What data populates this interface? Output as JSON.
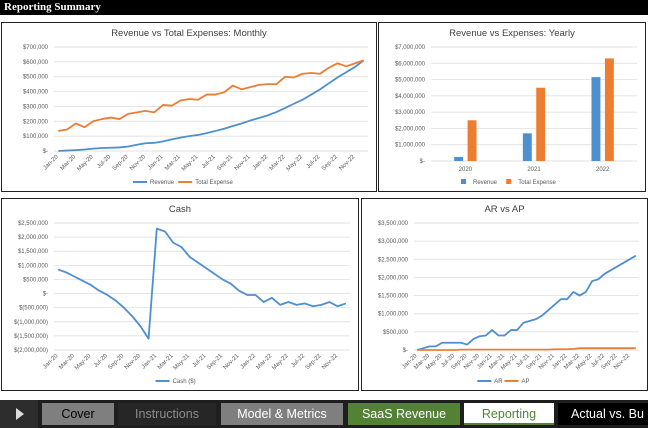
{
  "header": {
    "title": "Reporting Summary"
  },
  "chart_data": [
    {
      "type": "line",
      "title": "Revenue vs Total Expenses: Monthly",
      "categories": [
        "Jan-20",
        null,
        "Mar-20",
        null,
        "May-20",
        null,
        "Jul-20",
        null,
        "Sep-20",
        null,
        "Nov-20",
        null,
        "Jan-21",
        null,
        "Mar-21",
        null,
        "May-21",
        null,
        "Jul-21",
        null,
        "Sep-21",
        null,
        "Nov-21",
        null,
        "Jan-22",
        null,
        "Mar-22",
        null,
        "May-22",
        null,
        "Jul-22",
        null,
        "Sep-22",
        null,
        "Nov-22",
        null
      ],
      "series": [
        {
          "name": "Revenue",
          "color": "#4e8fcf",
          "values": [
            0,
            3000,
            6000,
            10000,
            16000,
            20000,
            22000,
            24000,
            30000,
            42000,
            52000,
            55000,
            65000,
            78000,
            90000,
            100000,
            108000,
            120000,
            135000,
            150000,
            168000,
            185000,
            205000,
            222000,
            240000,
            262000,
            290000,
            318000,
            345000,
            380000,
            415000,
            455000,
            495000,
            530000,
            565000,
            610000
          ]
        },
        {
          "name": "Total Expense",
          "color": "#ed7d31",
          "values": [
            135000,
            145000,
            185000,
            160000,
            200000,
            215000,
            225000,
            215000,
            250000,
            260000,
            270000,
            260000,
            310000,
            305000,
            340000,
            350000,
            345000,
            380000,
            380000,
            395000,
            440000,
            415000,
            430000,
            445000,
            450000,
            450000,
            500000,
            495000,
            520000,
            525000,
            520000,
            560000,
            590000,
            570000,
            590000,
            610000
          ]
        }
      ],
      "ylim": [
        0,
        700000
      ],
      "yticks": [
        {
          "value": 0,
          "label": "$-"
        },
        {
          "value": 100000,
          "label": "$100,000"
        },
        {
          "value": 200000,
          "label": "$200,000"
        },
        {
          "value": 300000,
          "label": "$300,000"
        },
        {
          "value": 400000,
          "label": "$400,000"
        },
        {
          "value": 500000,
          "label": "$500,000"
        },
        {
          "value": 600000,
          "label": "$600,000"
        },
        {
          "value": 700000,
          "label": "$700,000"
        }
      ],
      "grid": true,
      "legend": "bottom"
    },
    {
      "type": "bar",
      "title": "Revenue vs Expenses: Yearly",
      "categories": [
        "2020",
        "2021",
        "2022"
      ],
      "series": [
        {
          "name": "Revenue",
          "color": "#4e8fcf",
          "values": [
            250000,
            1700000,
            5150000
          ]
        },
        {
          "name": "Total Expense",
          "color": "#ed7d31",
          "values": [
            2500000,
            4500000,
            6300000
          ]
        }
      ],
      "ylim": [
        0,
        7000000
      ],
      "yticks": [
        {
          "value": 0,
          "label": "$-"
        },
        {
          "value": 1000000,
          "label": "$1,000,000"
        },
        {
          "value": 2000000,
          "label": "$2,000,000"
        },
        {
          "value": 3000000,
          "label": "$3,000,000"
        },
        {
          "value": 4000000,
          "label": "$4,000,000"
        },
        {
          "value": 5000000,
          "label": "$5,000,000"
        },
        {
          "value": 6000000,
          "label": "$6,000,000"
        },
        {
          "value": 7000000,
          "label": "$7,000,000"
        }
      ],
      "grid": true,
      "legend": "bottom"
    },
    {
      "type": "line",
      "title": "Cash",
      "categories": [
        "Jan-20",
        null,
        "Mar-20",
        null,
        "May-20",
        null,
        "Jul-20",
        null,
        "Sep-20",
        null,
        "Nov-20",
        null,
        "Jan-21",
        null,
        "Mar-21",
        null,
        "May-21",
        null,
        "Jul-21",
        null,
        "Sep-21",
        null,
        "Nov-21",
        null,
        "Jan-22",
        null,
        "Mar-22",
        null,
        "May-22",
        null,
        "Jul-22",
        null,
        "Sep-22",
        null,
        "Nov-22",
        null
      ],
      "series": [
        {
          "name": "Cash ($)",
          "color": "#4e8fcf",
          "values": [
            850000,
            750000,
            600000,
            450000,
            300000,
            100000,
            -50000,
            -250000,
            -500000,
            -800000,
            -1150000,
            -1600000,
            2300000,
            2200000,
            1800000,
            1650000,
            1300000,
            1100000,
            900000,
            700000,
            500000,
            350000,
            100000,
            -50000,
            -50000,
            -300000,
            -150000,
            -400000,
            -300000,
            -400000,
            -350000,
            -450000,
            -400000,
            -300000,
            -450000,
            -350000
          ]
        }
      ],
      "ylim": [
        -2000000,
        2500000
      ],
      "yticks": [
        {
          "value": -2000000,
          "label": "$(2,000,000)"
        },
        {
          "value": -1500000,
          "label": "$(1,500,000)"
        },
        {
          "value": -1000000,
          "label": "$(1,000,000)"
        },
        {
          "value": -500000,
          "label": "$(500,000)"
        },
        {
          "value": 0,
          "label": "$-"
        },
        {
          "value": 500000,
          "label": "$500,000"
        },
        {
          "value": 1000000,
          "label": "$1,000,000"
        },
        {
          "value": 1500000,
          "label": "$1,500,000"
        },
        {
          "value": 2000000,
          "label": "$2,000,000"
        },
        {
          "value": 2500000,
          "label": "$2,500,000"
        }
      ],
      "grid": true,
      "legend": "bottom"
    },
    {
      "type": "line",
      "title": "AR vs AP",
      "categories": [
        "Jan-20",
        null,
        "Mar-20",
        null,
        "May-20",
        null,
        "Jul-20",
        null,
        "Sep-20",
        null,
        "Nov-20",
        null,
        "Jan-21",
        null,
        "Mar-21",
        null,
        "May-21",
        null,
        "Jul-21",
        null,
        "Sep-21",
        null,
        "Nov-21",
        null,
        "Jan-22",
        null,
        "Mar-22",
        null,
        "May-22",
        null,
        "Jul-22",
        null,
        "Sep-22",
        null,
        "Nov-22",
        null
      ],
      "series": [
        {
          "name": "AR",
          "color": "#4e8fcf",
          "values": [
            0,
            50000,
            100000,
            100000,
            200000,
            200000,
            200000,
            200000,
            150000,
            300000,
            380000,
            400000,
            550000,
            400000,
            400000,
            550000,
            550000,
            750000,
            800000,
            850000,
            950000,
            1100000,
            1250000,
            1400000,
            1400000,
            1600000,
            1500000,
            1600000,
            1900000,
            1950000,
            2100000,
            2200000,
            2300000,
            2400000,
            2500000,
            2600000
          ]
        },
        {
          "name": "AP",
          "color": "#ed7d31",
          "values": [
            0,
            0,
            0,
            0,
            0,
            0,
            0,
            10000,
            10000,
            10000,
            10000,
            10000,
            10000,
            10000,
            10000,
            10000,
            10000,
            10000,
            10000,
            10000,
            10000,
            10000,
            20000,
            20000,
            20000,
            30000,
            50000,
            50000,
            50000,
            50000,
            50000,
            50000,
            50000,
            50000,
            50000,
            50000
          ]
        }
      ],
      "ylim": [
        0,
        3500000
      ],
      "yticks": [
        {
          "value": 0,
          "label": "$-"
        },
        {
          "value": 500000,
          "label": "$500,000"
        },
        {
          "value": 1000000,
          "label": "$1,000,000"
        },
        {
          "value": 1500000,
          "label": "$1,500,000"
        },
        {
          "value": 2000000,
          "label": "$2,000,000"
        },
        {
          "value": 2500000,
          "label": "$2,500,000"
        },
        {
          "value": 3000000,
          "label": "$3,000,000"
        },
        {
          "value": 3500000,
          "label": "$3,500,000"
        }
      ],
      "grid": true,
      "legend": "bottom"
    }
  ],
  "tabs": [
    "Cover",
    "Instructions",
    "Model & Metrics",
    "SaaS Revenue",
    "Reporting",
    "Actual vs. Bu"
  ]
}
